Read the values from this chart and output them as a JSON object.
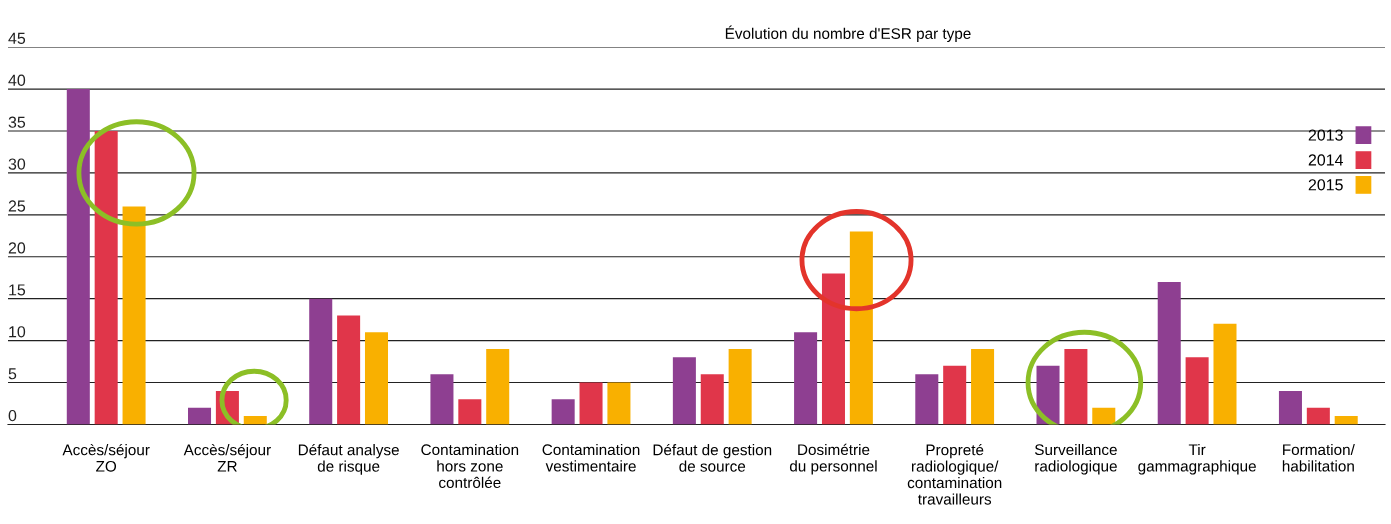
{
  "chart_data": {
    "type": "bar",
    "title": "Évolution du nombre d'ESR par type",
    "categories": [
      "Accès/séjour\nZO",
      "Accès/séjour\nZR",
      "Défaut analyse\nde risque",
      "Contamination\nhors zone\ncontrôlée",
      "Contamination\nvestimentaire",
      "Défaut de gestion\nde source",
      "Dosimétrie\ndu personnel",
      "Propreté\nradiologique/\ncontamination\ntravailleurs",
      "Surveillance\nradiologique",
      "Tir\ngammagraphique",
      "Formation/\nhabilitation"
    ],
    "series": [
      {
        "name": "2013",
        "color": "#8e3f91",
        "values": [
          40,
          2,
          15,
          6,
          3,
          8,
          11,
          6,
          7,
          17,
          4
        ]
      },
      {
        "name": "2014",
        "color": "#e0364a",
        "values": [
          35,
          4,
          13,
          3,
          5,
          6,
          18,
          7,
          9,
          8,
          2
        ]
      },
      {
        "name": "2015",
        "color": "#f9b000",
        "values": [
          26,
          1,
          11,
          9,
          5,
          9,
          23,
          9,
          2,
          12,
          1
        ]
      }
    ],
    "ylim": [
      0,
      45
    ],
    "yticks": [
      0,
      5,
      10,
      15,
      20,
      25,
      30,
      35,
      40,
      45
    ],
    "grid": "y",
    "legend": "right"
  }
}
